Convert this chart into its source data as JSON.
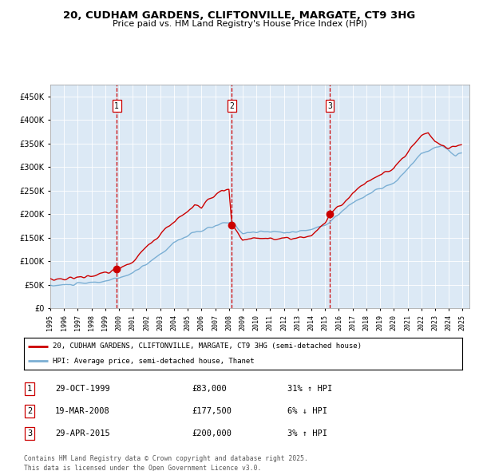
{
  "title": "20, CUDHAM GARDENS, CLIFTONVILLE, MARGATE, CT9 3HG",
  "subtitle": "Price paid vs. HM Land Registry's House Price Index (HPI)",
  "bg_color": "#dce9f5",
  "red_line_label": "20, CUDHAM GARDENS, CLIFTONVILLE, MARGATE, CT9 3HG (semi-detached house)",
  "blue_line_label": "HPI: Average price, semi-detached house, Thanet",
  "footer": "Contains HM Land Registry data © Crown copyright and database right 2025.\nThis data is licensed under the Open Government Licence v3.0.",
  "transactions": [
    {
      "num": 1,
      "date": "29-OCT-1999",
      "price": "£83,000",
      "hpi": "31% ↑ HPI",
      "year": 1999.83
    },
    {
      "num": 2,
      "date": "19-MAR-2008",
      "price": "£177,500",
      "hpi": "6% ↓ HPI",
      "year": 2008.21
    },
    {
      "num": 3,
      "date": "29-APR-2015",
      "price": "£200,000",
      "hpi": "3% ↑ HPI",
      "year": 2015.33
    }
  ],
  "ylim": [
    0,
    475000
  ],
  "xlim_start": 1995.0,
  "xlim_end": 2025.5,
  "trans_years": [
    1999.83,
    2008.21,
    2015.33
  ],
  "trans_prices": [
    83000,
    177500,
    200000
  ],
  "red_color": "#cc0000",
  "blue_color": "#7bafd4"
}
